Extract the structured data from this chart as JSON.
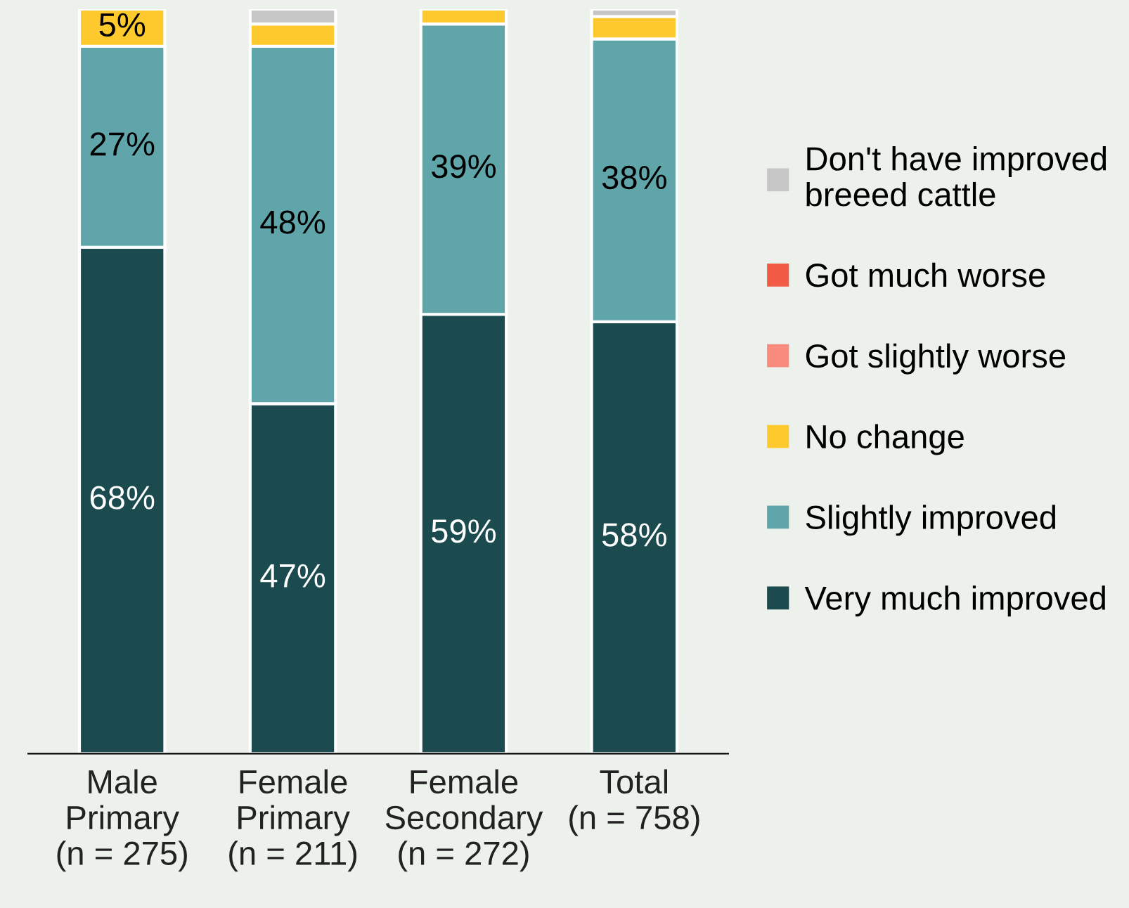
{
  "chart_data": {
    "type": "bar",
    "stacked": true,
    "categories": [
      "Male\nPrimary\n(n = 275)",
      "Female\nPrimary\n(n = 211)",
      "Female\nSecondary\n(n = 272)",
      "Total\n(n = 758)"
    ],
    "series": [
      {
        "name": "Very much improved",
        "color": "#1b4b4f",
        "values": [
          68,
          47,
          59,
          58
        ],
        "value_labels": [
          "68%",
          "47%",
          "59%",
          "58%"
        ]
      },
      {
        "name": "Slightly improved",
        "color": "#5fa5aa",
        "values": [
          27,
          48,
          39,
          38
        ],
        "value_labels": [
          "27%",
          "48%",
          "39%",
          "38%"
        ]
      },
      {
        "name": "No change",
        "color": "#fec92c",
        "values": [
          5,
          3,
          2,
          3
        ],
        "value_labels": [
          "5%",
          null,
          null,
          null
        ]
      },
      {
        "name": "Got slightly worse",
        "color": "#f98b7e",
        "values": [
          0,
          0,
          0,
          0
        ]
      },
      {
        "name": "Got much worse",
        "color": "#f15a45",
        "values": [
          0,
          0,
          0,
          0
        ]
      },
      {
        "name": "Don't have improved breeed cattle",
        "color": "#c6c6c6",
        "values": [
          0,
          2,
          0,
          1
        ]
      }
    ],
    "legend": "right",
    "grid": false
  }
}
